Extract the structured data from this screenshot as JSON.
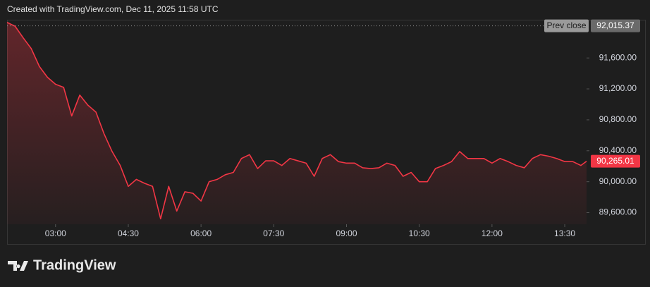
{
  "chart_data": {
    "type": "line",
    "title": "Created with TradingView.com, Dec 11, 2025 11:58 UTC",
    "brand": "TradingView",
    "x": [
      "02:00",
      "02:10",
      "02:20",
      "02:30",
      "02:40",
      "02:50",
      "03:00",
      "03:10",
      "03:20",
      "03:30",
      "03:40",
      "03:50",
      "04:00",
      "04:10",
      "04:20",
      "04:30",
      "04:40",
      "04:50",
      "05:00",
      "05:10",
      "05:20",
      "05:30",
      "05:40",
      "05:50",
      "06:00",
      "06:10",
      "06:20",
      "06:30",
      "06:40",
      "06:50",
      "07:00",
      "07:10",
      "07:20",
      "07:30",
      "07:40",
      "07:50",
      "08:00",
      "08:10",
      "08:20",
      "08:30",
      "08:40",
      "08:50",
      "09:00",
      "09:10",
      "09:20",
      "09:30",
      "09:40",
      "09:50",
      "10:00",
      "10:10",
      "10:20",
      "10:30",
      "10:40",
      "10:50",
      "11:00",
      "11:10",
      "11:20",
      "11:30",
      "11:40",
      "11:50",
      "12:00",
      "12:10",
      "12:20",
      "12:30",
      "12:40",
      "12:50",
      "13:00",
      "13:10",
      "13:20",
      "13:30",
      "13:40",
      "13:50",
      "13:57"
    ],
    "series": [
      {
        "color": "#f23645",
        "values": [
          92060,
          92010,
          91860,
          91720,
          91490,
          91350,
          91260,
          91220,
          90850,
          91120,
          90990,
          90900,
          90620,
          90390,
          90210,
          89940,
          90030,
          89980,
          89940,
          89520,
          89940,
          89620,
          89870,
          89850,
          89750,
          90000,
          90030,
          90090,
          90120,
          90300,
          90350,
          90170,
          90270,
          90270,
          90210,
          90300,
          90270,
          90240,
          90070,
          90300,
          90350,
          90260,
          90240,
          90240,
          90180,
          90170,
          90180,
          90240,
          90210,
          90070,
          90120,
          90000,
          90000,
          90170,
          90210,
          90260,
          90390,
          90300,
          90300,
          90300,
          90240,
          90300,
          90260,
          90210,
          90180,
          90300,
          90350,
          90330,
          90300,
          90260,
          90260,
          90210,
          90265.01
        ]
      }
    ],
    "xlim": [
      "02:00",
      "13:57"
    ],
    "xticks": [
      "03:00",
      "04:30",
      "06:00",
      "07:30",
      "09:00",
      "10:30",
      "12:00",
      "13:30"
    ],
    "ylim": [
      89450,
      92085
    ],
    "yticks": [
      {
        "value": 89600,
        "label": "89,600.00"
      },
      {
        "value": 90000,
        "label": "90,000.00"
      },
      {
        "value": 90400,
        "label": "90,400.00"
      },
      {
        "value": 90800,
        "label": "90,800.00"
      },
      {
        "value": 91200,
        "label": "91,200.00"
      },
      {
        "value": 91600,
        "label": "91,600.00"
      }
    ],
    "prev_close": {
      "name": "Prev close",
      "value": 92015.37,
      "label": "92,015.37"
    },
    "last_price": {
      "value": 90265.01,
      "label": "90,265.01"
    }
  }
}
